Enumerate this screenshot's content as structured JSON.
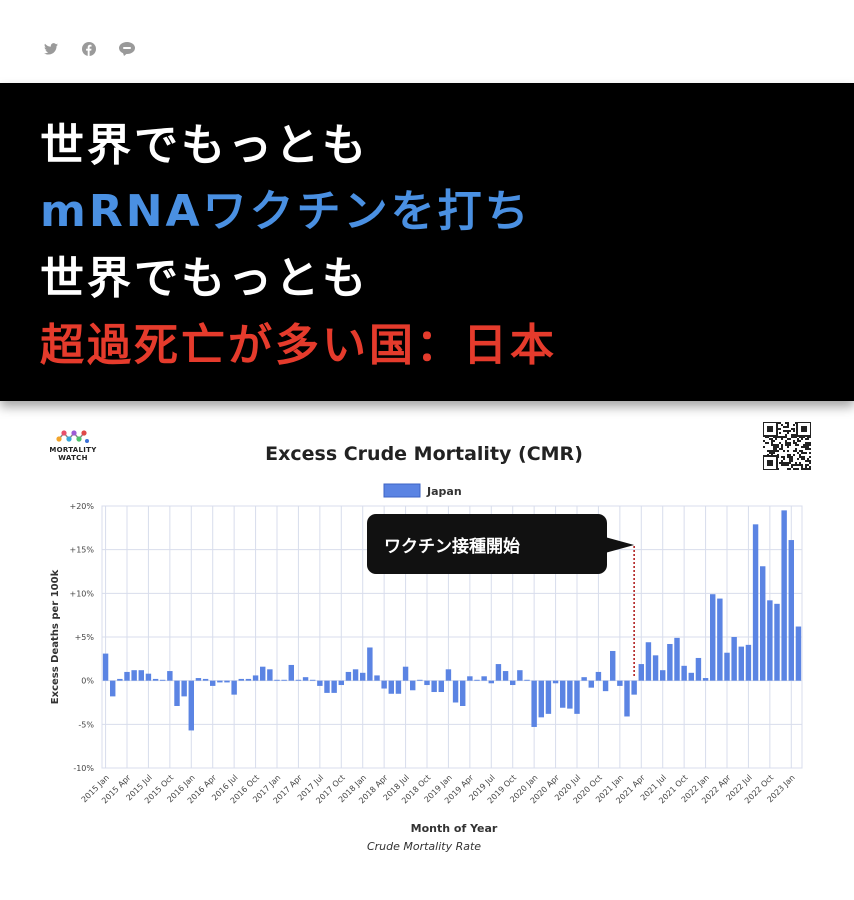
{
  "share": {
    "twitter": "twitter-icon",
    "facebook": "facebook-icon",
    "line": "line-icon"
  },
  "headline": {
    "line1": "世界でもっとも",
    "line2": "mRNAワクチンを打ち",
    "line3": "世界でもっとも",
    "line4": "超過死亡が多い国：日本",
    "colors": {
      "white": "#ffffff",
      "blue": "#4a90e2",
      "red": "#e53b2c"
    }
  },
  "logo": {
    "line1": "MORTALITY",
    "line2": "WATCH"
  },
  "chart_data": {
    "type": "bar",
    "title": "Excess Crude Mortality (CMR)",
    "subtitle": "Crude Mortality Rate",
    "xlabel": "Month of Year",
    "ylabel": "Excess Deaths per 100k",
    "ylim": [
      -10,
      20
    ],
    "yticks": [
      "+20%",
      "+15%",
      "+10%",
      "+5%",
      "0%",
      "-5%",
      "-10%"
    ],
    "ytick_values": [
      20,
      15,
      10,
      5,
      0,
      -5,
      -10
    ],
    "legend": "top-center",
    "grid": true,
    "bar_color": "#5b84e3",
    "xtick_labels": [
      "2015 Jan",
      "2015 Apr",
      "2015 Jul",
      "2015 Oct",
      "2016 Jan",
      "2016 Apr",
      "2016 Jul",
      "2016 Oct",
      "2017 Jan",
      "2017 Apr",
      "2017 Jul",
      "2017 Oct",
      "2018 Jan",
      "2018 Apr",
      "2018 Jul",
      "2018 Oct",
      "2019 Jan",
      "2019 Apr",
      "2019 Jul",
      "2019 Oct",
      "2020 Jan",
      "2020 Apr",
      "2020 Jul",
      "2020 Oct",
      "2021 Jan",
      "2021 Apr",
      "2021 Jul",
      "2021 Oct",
      "2022 Jan",
      "2022 Apr",
      "2022 Jul",
      "2022 Oct",
      "2023 Jan"
    ],
    "series": [
      {
        "name": "Japan",
        "values": [
          3.1,
          -1.8,
          0.2,
          1.0,
          1.2,
          1.2,
          0.8,
          0.2,
          0.1,
          1.1,
          -2.9,
          -1.8,
          -5.7,
          0.3,
          0.2,
          -0.6,
          -0.2,
          -0.2,
          -1.6,
          0.2,
          0.2,
          0.6,
          1.6,
          1.3,
          0.1,
          0.1,
          1.8,
          0.1,
          0.4,
          0.1,
          -0.6,
          -1.4,
          -1.4,
          -0.5,
          1.0,
          1.3,
          0.9,
          3.8,
          0.6,
          -0.9,
          -1.5,
          -1.5,
          1.6,
          -1.1,
          0.1,
          -0.5,
          -1.3,
          -1.3,
          1.3,
          -2.5,
          -2.9,
          0.5,
          0.1,
          0.5,
          -0.3,
          1.9,
          1.1,
          -0.5,
          1.2,
          0.1,
          -5.3,
          -4.2,
          -3.8,
          -0.3,
          -3.1,
          -3.2,
          -3.8,
          0.4,
          -0.8,
          1.0,
          -1.2,
          3.4,
          -0.6,
          -4.1,
          -1.6,
          1.9,
          4.4,
          2.9,
          1.2,
          4.2,
          4.9,
          1.7,
          0.9,
          2.6,
          0.3,
          9.9,
          9.4,
          3.2,
          5.0,
          3.9,
          4.1,
          17.9,
          13.1,
          9.2,
          8.8,
          19.5,
          16.1,
          6.2
        ]
      }
    ],
    "annotation": {
      "text": "ワクチン接種開始",
      "x_index": 74
    }
  }
}
